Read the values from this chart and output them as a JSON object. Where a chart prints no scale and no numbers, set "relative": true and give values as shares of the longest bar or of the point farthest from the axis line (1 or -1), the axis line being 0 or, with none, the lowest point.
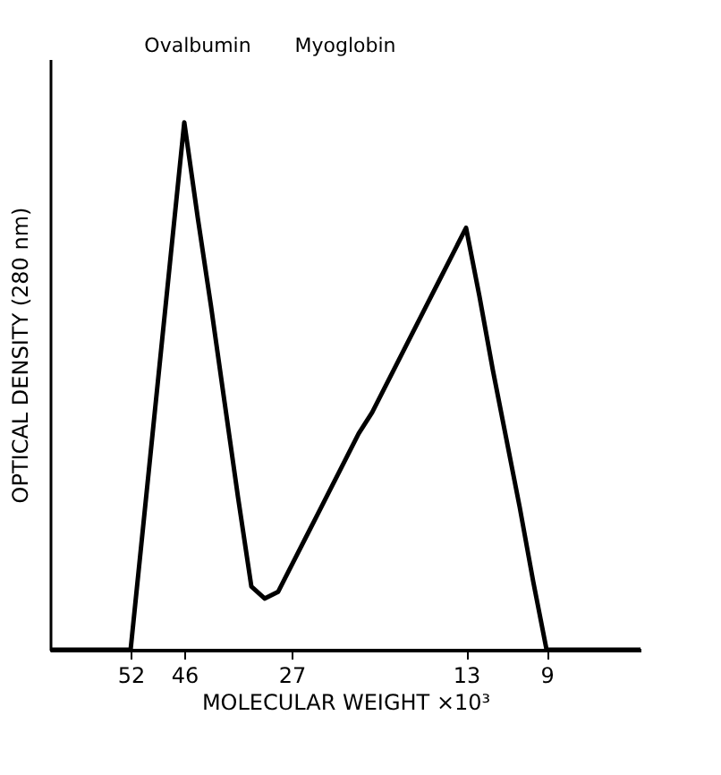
{
  "chart_data": {
    "type": "line",
    "relative": true,
    "xlabel": "MOLECULAR WEIGHT ×10³",
    "ylabel": "OPTICAL DENSITY (280 nm)",
    "categories": [
      null,
      null,
      null,
      null,
      null,
      null,
      "52",
      null,
      null,
      null,
      "46",
      null,
      null,
      null,
      null,
      null,
      null,
      null,
      "27",
      null,
      null,
      null,
      null,
      null,
      null,
      null,
      null,
      null,
      null,
      null,
      null,
      "13",
      null,
      null,
      null,
      null,
      null,
      "9",
      null,
      null,
      null,
      null,
      null,
      null,
      null
    ],
    "series": [
      {
        "color": "#000000",
        "values": [
          0,
          0,
          0,
          0,
          0,
          0,
          0,
          0.25,
          0.5,
          0.75,
          1,
          0.82,
          0.65,
          0.47,
          0.29,
          0.12,
          0.097,
          0.11,
          0.16,
          0.21,
          0.26,
          0.31,
          0.36,
          0.41,
          0.45,
          0.5,
          0.55,
          0.6,
          0.65,
          0.7,
          0.75,
          0.8,
          0.67,
          0.53,
          0.4,
          0.27,
          0.13,
          0,
          0,
          0,
          0,
          0,
          0,
          0,
          0
        ]
      }
    ],
    "annotations": [
      "Ovalbumin",
      "Myoglobin"
    ],
    "marker": "none",
    "line_style": "solid",
    "grid": false,
    "legend": false
  }
}
